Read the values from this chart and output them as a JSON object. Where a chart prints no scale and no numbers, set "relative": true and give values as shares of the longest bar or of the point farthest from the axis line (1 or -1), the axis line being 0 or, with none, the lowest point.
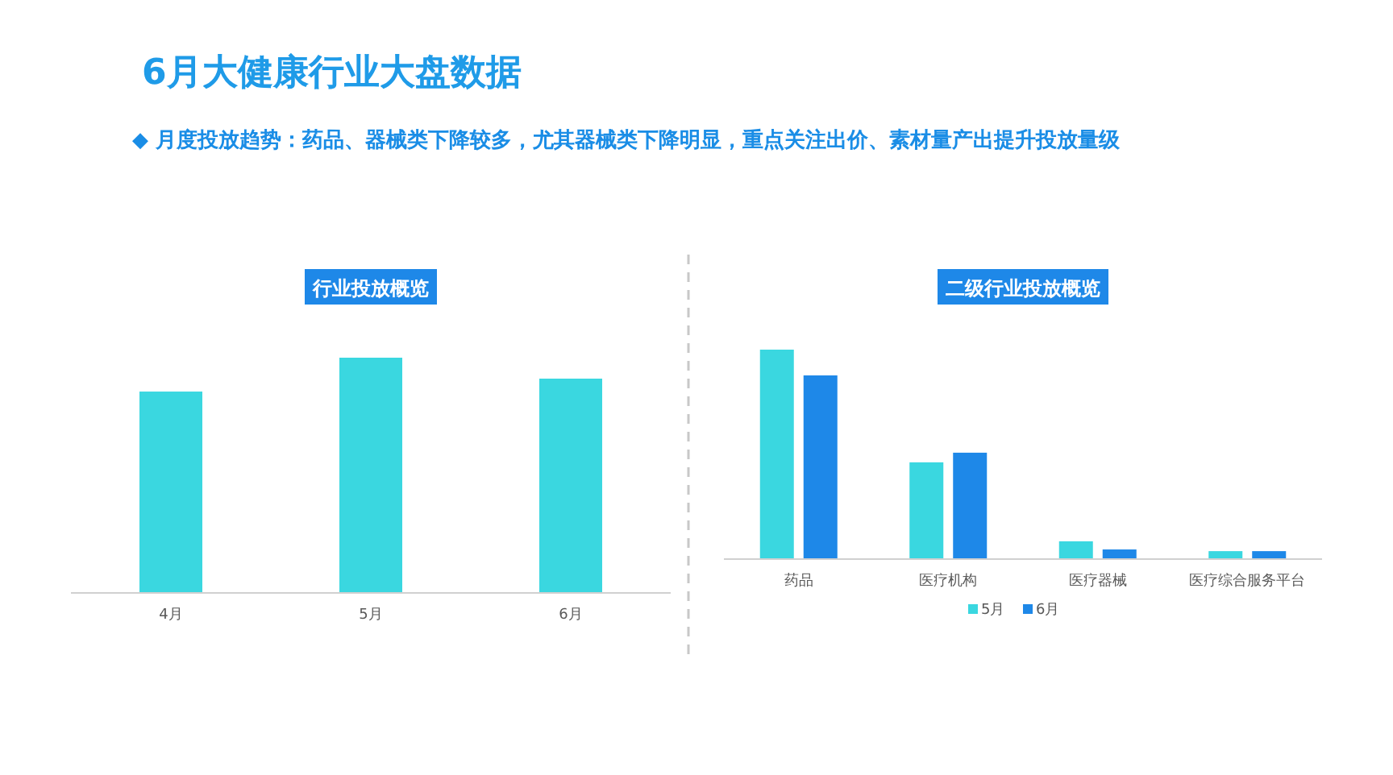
{
  "chart_data": [
    {
      "type": "bar",
      "title": "行业投放概览",
      "annotations": [
        "6月大健康行业大盘数据",
        "◆  月度投放趋势：药品、器械类下降较多，尤其器械类下降明显，重点关注出价、素材量产出提升投放量级"
      ],
      "categories": [
        "4月",
        "5月",
        "6月"
      ],
      "relative": true,
      "legend": false,
      "series": [
        {
          "color": "#3ad7e0",
          "values": [
            0.856,
            1,
            0.911
          ]
        }
      ]
    },
    {
      "type": "bar",
      "title": "二级行业投放概览",
      "categories": [
        "药品",
        "医疗机构",
        "医疗器械",
        "医疗综合服务平台"
      ],
      "relative": true,
      "legend": "bottom",
      "series": [
        {
          "name": "5月",
          "color": "#3ad7e0",
          "values": [
            1,
            0.462,
            0.085,
            0.038
          ]
        },
        {
          "name": "6月",
          "color": "#1e88e8",
          "values": [
            0.877,
            0.508,
            0.046,
            0.038
          ]
        }
      ]
    }
  ]
}
